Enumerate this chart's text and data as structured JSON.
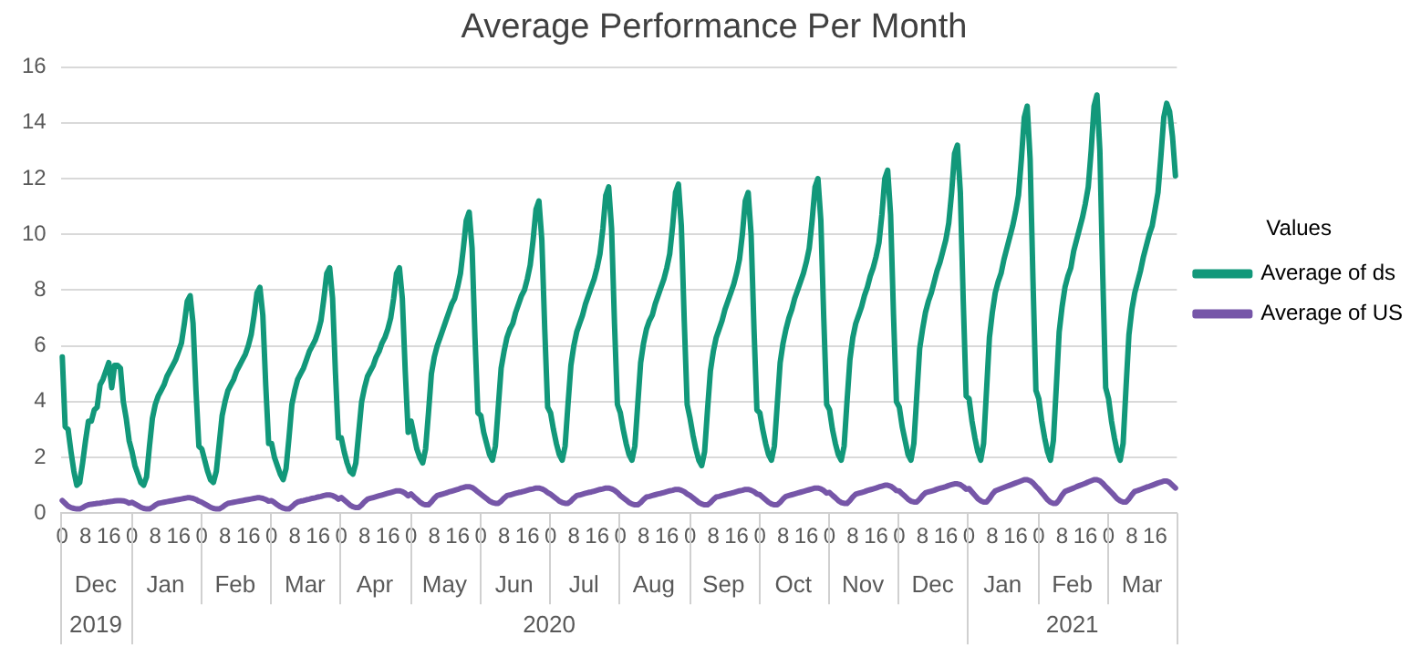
{
  "chart_data": {
    "type": "line",
    "title": "Average Performance Per Month",
    "legend_title": "Values",
    "legend": "right",
    "grid": "y",
    "marker": "none",
    "line_style": "solid",
    "ylim": [
      0,
      16
    ],
    "yticks": [
      0,
      2,
      4,
      6,
      8,
      10,
      12,
      14,
      16
    ],
    "annotations": [
      "Dec",
      "Jan",
      "Feb",
      "Mar",
      "Apr",
      "May",
      "Jun",
      "Jul",
      "Aug",
      "Sep",
      "Oct",
      "Nov",
      "Dec",
      "Jan",
      "Feb",
      "Mar",
      "2019",
      "2020",
      "2021"
    ],
    "categories": [
      "0",
      null,
      null,
      null,
      null,
      null,
      null,
      null,
      "8",
      null,
      null,
      null,
      null,
      null,
      null,
      null,
      "16",
      null,
      null,
      null,
      null,
      null,
      null,
      null,
      "0",
      null,
      null,
      null,
      null,
      null,
      null,
      null,
      "8",
      null,
      null,
      null,
      null,
      null,
      null,
      null,
      "16",
      null,
      null,
      null,
      null,
      null,
      null,
      null,
      "0",
      null,
      null,
      null,
      null,
      null,
      null,
      null,
      "8",
      null,
      null,
      null,
      null,
      null,
      null,
      null,
      "16",
      null,
      null,
      null,
      null,
      null,
      null,
      null,
      "0",
      null,
      null,
      null,
      null,
      null,
      null,
      null,
      "8",
      null,
      null,
      null,
      null,
      null,
      null,
      null,
      "16",
      null,
      null,
      null,
      null,
      null,
      null,
      null,
      "0",
      null,
      null,
      null,
      null,
      null,
      null,
      null,
      "8",
      null,
      null,
      null,
      null,
      null,
      null,
      null,
      "16",
      null,
      null,
      null,
      null,
      null,
      null,
      null,
      "0",
      null,
      null,
      null,
      null,
      null,
      null,
      null,
      "8",
      null,
      null,
      null,
      null,
      null,
      null,
      null,
      "16",
      null,
      null,
      null,
      null,
      null,
      null,
      null,
      "0",
      null,
      null,
      null,
      null,
      null,
      null,
      null,
      "8",
      null,
      null,
      null,
      null,
      null,
      null,
      null,
      "16",
      null,
      null,
      null,
      null,
      null,
      null,
      null,
      "0",
      null,
      null,
      null,
      null,
      null,
      null,
      null,
      "8",
      null,
      null,
      null,
      null,
      null,
      null,
      null,
      "16",
      null,
      null,
      null,
      null,
      null,
      null,
      null,
      "0",
      null,
      null,
      null,
      null,
      null,
      null,
      null,
      "8",
      null,
      null,
      null,
      null,
      null,
      null,
      null,
      "16",
      null,
      null,
      null,
      null,
      null,
      null,
      null,
      "0",
      null,
      null,
      null,
      null,
      null,
      null,
      null,
      "8",
      null,
      null,
      null,
      null,
      null,
      null,
      null,
      "16",
      null,
      null,
      null,
      null,
      null,
      null,
      null,
      "0",
      null,
      null,
      null,
      null,
      null,
      null,
      null,
      "8",
      null,
      null,
      null,
      null,
      null,
      null,
      null,
      "16",
      null,
      null,
      null,
      null,
      null,
      null,
      null,
      "0",
      null,
      null,
      null,
      null,
      null,
      null,
      null,
      "8",
      null,
      null,
      null,
      null,
      null,
      null,
      null,
      "16",
      null,
      null,
      null,
      null,
      null,
      null,
      null,
      "0",
      null,
      null,
      null,
      null,
      null,
      null,
      null,
      "8",
      null,
      null,
      null,
      null,
      null,
      null,
      null,
      "16",
      null,
      null,
      null,
      null,
      null,
      null,
      null,
      "0",
      null,
      null,
      null,
      null,
      null,
      null,
      null,
      "8",
      null,
      null,
      null,
      null,
      null,
      null,
      null,
      "16",
      null,
      null,
      null,
      null,
      null,
      null,
      null,
      "0",
      null,
      null,
      null,
      null,
      null,
      null,
      null,
      "8",
      null,
      null,
      null,
      null,
      null,
      null,
      null,
      "16",
      null,
      null,
      null,
      null,
      null,
      null,
      null,
      "0",
      null,
      null,
      null,
      null,
      null,
      null,
      null,
      "8",
      null,
      null,
      null,
      null,
      null,
      null,
      null,
      "16",
      null,
      null,
      null,
      null,
      null,
      null,
      null
    ],
    "series": [
      {
        "name": "Average of ds",
        "color": "#12987a",
        "values": [
          5.6,
          3.1,
          3.0,
          2.2,
          1.5,
          1.0,
          1.1,
          1.8,
          2.6,
          3.3,
          3.3,
          3.7,
          3.8,
          4.6,
          4.8,
          5.1,
          5.4,
          4.5,
          5.3,
          5.3,
          5.2,
          4.0,
          3.4,
          2.6,
          2.2,
          1.7,
          1.4,
          1.1,
          1.0,
          1.3,
          2.4,
          3.4,
          3.9,
          4.2,
          4.4,
          4.6,
          4.9,
          5.1,
          5.3,
          5.5,
          5.8,
          6.1,
          6.8,
          7.6,
          7.8,
          6.8,
          4.4,
          2.4,
          2.3,
          1.9,
          1.5,
          1.2,
          1.1,
          1.5,
          2.5,
          3.5,
          4.0,
          4.4,
          4.6,
          4.8,
          5.1,
          5.3,
          5.5,
          5.7,
          6.0,
          6.4,
          7.1,
          7.9,
          8.1,
          7.1,
          4.6,
          2.5,
          2.5,
          2.0,
          1.7,
          1.4,
          1.2,
          1.6,
          2.7,
          3.9,
          4.4,
          4.8,
          5.0,
          5.2,
          5.5,
          5.8,
          6.0,
          6.2,
          6.5,
          6.9,
          7.7,
          8.6,
          8.8,
          7.7,
          5.0,
          2.7,
          2.7,
          2.2,
          1.8,
          1.5,
          1.4,
          1.8,
          2.9,
          4.0,
          4.5,
          4.9,
          5.1,
          5.3,
          5.6,
          5.8,
          6.1,
          6.3,
          6.6,
          7.0,
          7.7,
          8.6,
          8.8,
          7.7,
          5.1,
          2.9,
          3.3,
          2.8,
          2.3,
          2.0,
          1.8,
          2.3,
          3.6,
          5.0,
          5.6,
          6.0,
          6.3,
          6.6,
          6.9,
          7.2,
          7.5,
          7.7,
          8.1,
          8.6,
          9.5,
          10.5,
          10.8,
          9.5,
          6.3,
          3.6,
          3.5,
          2.9,
          2.5,
          2.1,
          1.9,
          2.4,
          3.8,
          5.2,
          5.8,
          6.3,
          6.6,
          6.8,
          7.2,
          7.5,
          7.8,
          8.0,
          8.4,
          8.9,
          9.8,
          10.9,
          11.2,
          9.8,
          6.6,
          3.8,
          3.6,
          3.0,
          2.5,
          2.1,
          1.9,
          2.4,
          3.9,
          5.3,
          6.0,
          6.5,
          6.8,
          7.1,
          7.5,
          7.8,
          8.1,
          8.4,
          8.8,
          9.3,
          10.2,
          11.4,
          11.7,
          10.2,
          6.8,
          3.9,
          3.6,
          3.0,
          2.5,
          2.1,
          1.9,
          2.4,
          3.9,
          5.4,
          6.1,
          6.6,
          6.9,
          7.1,
          7.5,
          7.8,
          8.1,
          8.4,
          8.8,
          9.3,
          10.3,
          11.5,
          11.8,
          10.3,
          6.9,
          3.9,
          3.4,
          2.8,
          2.3,
          1.9,
          1.7,
          2.2,
          3.7,
          5.1,
          5.8,
          6.3,
          6.6,
          6.9,
          7.3,
          7.6,
          7.9,
          8.2,
          8.6,
          9.1,
          10.0,
          11.2,
          11.5,
          10.0,
          6.6,
          3.7,
          3.6,
          3.0,
          2.5,
          2.1,
          1.9,
          2.4,
          3.9,
          5.4,
          6.1,
          6.6,
          7.0,
          7.3,
          7.7,
          8.0,
          8.3,
          8.6,
          9.0,
          9.5,
          10.5,
          11.7,
          12.0,
          10.5,
          7.0,
          3.9,
          3.7,
          3.0,
          2.5,
          2.1,
          1.9,
          2.4,
          4.0,
          5.5,
          6.3,
          6.8,
          7.1,
          7.4,
          7.8,
          8.1,
          8.5,
          8.8,
          9.2,
          9.7,
          10.7,
          12.0,
          12.3,
          10.7,
          7.1,
          4.0,
          3.8,
          3.1,
          2.6,
          2.1,
          1.9,
          2.5,
          4.2,
          5.9,
          6.6,
          7.2,
          7.6,
          7.9,
          8.3,
          8.7,
          9.0,
          9.4,
          9.8,
          10.4,
          11.5,
          12.9,
          13.2,
          11.5,
          7.6,
          4.2,
          4.1,
          3.3,
          2.7,
          2.2,
          1.9,
          2.5,
          4.4,
          6.3,
          7.2,
          7.9,
          8.3,
          8.6,
          9.1,
          9.5,
          9.9,
          10.3,
          10.8,
          11.4,
          12.7,
          14.2,
          14.6,
          12.7,
          8.3,
          4.4,
          4.1,
          3.3,
          2.7,
          2.2,
          1.9,
          2.6,
          4.5,
          6.5,
          7.4,
          8.1,
          8.5,
          8.8,
          9.4,
          9.8,
          10.2,
          10.6,
          11.1,
          11.7,
          13.0,
          14.6,
          15.0,
          13.0,
          8.5,
          4.5,
          4.1,
          3.3,
          2.7,
          2.2,
          1.9,
          2.5,
          4.5,
          6.4,
          7.3,
          7.9,
          8.3,
          8.7,
          9.2,
          9.6,
          10.0,
          10.3,
          10.9,
          11.5,
          12.8,
          14.2,
          14.7,
          14.4,
          13.5,
          12.1
        ]
      },
      {
        "name": "Average of US",
        "color": "#7656a8",
        "values": [
          0.45,
          0.35,
          0.25,
          0.2,
          0.17,
          0.15,
          0.15,
          0.2,
          0.26,
          0.3,
          0.32,
          0.33,
          0.35,
          0.36,
          0.38,
          0.39,
          0.41,
          0.42,
          0.44,
          0.45,
          0.45,
          0.44,
          0.41,
          0.36,
          0.39,
          0.33,
          0.27,
          0.21,
          0.17,
          0.15,
          0.15,
          0.21,
          0.29,
          0.35,
          0.37,
          0.39,
          0.41,
          0.43,
          0.45,
          0.47,
          0.49,
          0.51,
          0.53,
          0.55,
          0.55,
          0.53,
          0.49,
          0.43,
          0.39,
          0.33,
          0.27,
          0.21,
          0.17,
          0.15,
          0.15,
          0.21,
          0.29,
          0.35,
          0.37,
          0.39,
          0.41,
          0.43,
          0.45,
          0.47,
          0.49,
          0.51,
          0.53,
          0.55,
          0.55,
          0.53,
          0.49,
          0.43,
          0.45,
          0.38,
          0.3,
          0.23,
          0.18,
          0.15,
          0.15,
          0.23,
          0.33,
          0.4,
          0.43,
          0.45,
          0.48,
          0.5,
          0.53,
          0.55,
          0.58,
          0.6,
          0.63,
          0.65,
          0.65,
          0.63,
          0.58,
          0.5,
          0.56,
          0.47,
          0.38,
          0.29,
          0.23,
          0.2,
          0.2,
          0.29,
          0.41,
          0.5,
          0.53,
          0.56,
          0.59,
          0.62,
          0.65,
          0.68,
          0.71,
          0.74,
          0.77,
          0.8,
          0.8,
          0.77,
          0.71,
          0.62,
          0.69,
          0.59,
          0.5,
          0.4,
          0.33,
          0.3,
          0.3,
          0.4,
          0.53,
          0.63,
          0.66,
          0.69,
          0.72,
          0.76,
          0.79,
          0.82,
          0.85,
          0.89,
          0.92,
          0.95,
          0.95,
          0.92,
          0.85,
          0.76,
          0.68,
          0.6,
          0.52,
          0.43,
          0.38,
          0.35,
          0.35,
          0.43,
          0.54,
          0.63,
          0.65,
          0.68,
          0.71,
          0.74,
          0.76,
          0.79,
          0.82,
          0.85,
          0.87,
          0.9,
          0.9,
          0.87,
          0.82,
          0.74,
          0.68,
          0.6,
          0.52,
          0.43,
          0.38,
          0.35,
          0.35,
          0.43,
          0.54,
          0.63,
          0.65,
          0.68,
          0.71,
          0.74,
          0.76,
          0.79,
          0.82,
          0.85,
          0.87,
          0.9,
          0.9,
          0.87,
          0.82,
          0.74,
          0.63,
          0.55,
          0.47,
          0.38,
          0.33,
          0.3,
          0.3,
          0.38,
          0.49,
          0.58,
          0.6,
          0.63,
          0.66,
          0.69,
          0.71,
          0.74,
          0.77,
          0.8,
          0.82,
          0.85,
          0.85,
          0.82,
          0.77,
          0.69,
          0.63,
          0.55,
          0.47,
          0.38,
          0.33,
          0.3,
          0.3,
          0.38,
          0.49,
          0.58,
          0.6,
          0.63,
          0.66,
          0.69,
          0.71,
          0.74,
          0.77,
          0.8,
          0.82,
          0.85,
          0.85,
          0.82,
          0.77,
          0.69,
          0.66,
          0.57,
          0.48,
          0.39,
          0.33,
          0.3,
          0.3,
          0.39,
          0.51,
          0.6,
          0.63,
          0.66,
          0.69,
          0.72,
          0.75,
          0.78,
          0.81,
          0.84,
          0.87,
          0.9,
          0.9,
          0.87,
          0.81,
          0.72,
          0.74,
          0.64,
          0.55,
          0.45,
          0.38,
          0.35,
          0.35,
          0.45,
          0.58,
          0.68,
          0.71,
          0.74,
          0.77,
          0.81,
          0.84,
          0.87,
          0.9,
          0.94,
          0.97,
          1.0,
          1.0,
          0.97,
          0.9,
          0.81,
          0.79,
          0.69,
          0.6,
          0.5,
          0.43,
          0.4,
          0.4,
          0.5,
          0.63,
          0.73,
          0.76,
          0.79,
          0.82,
          0.86,
          0.89,
          0.92,
          0.95,
          0.99,
          1.02,
          1.05,
          1.05,
          1.02,
          0.95,
          0.86,
          0.88,
          0.76,
          0.64,
          0.52,
          0.44,
          0.4,
          0.4,
          0.52,
          0.68,
          0.8,
          0.84,
          0.88,
          0.92,
          0.96,
          1.0,
          1.04,
          1.08,
          1.12,
          1.16,
          1.2,
          1.2,
          1.16,
          1.08,
          0.96,
          0.86,
          0.73,
          0.61,
          0.48,
          0.39,
          0.35,
          0.35,
          0.48,
          0.65,
          0.78,
          0.82,
          0.86,
          0.9,
          0.95,
          0.99,
          1.03,
          1.07,
          1.12,
          1.16,
          1.2,
          1.2,
          1.16,
          1.07,
          0.95,
          0.85,
          0.74,
          0.63,
          0.51,
          0.44,
          0.4,
          0.4,
          0.51,
          0.66,
          0.78,
          0.81,
          0.85,
          0.89,
          0.93,
          0.96,
          1.0,
          1.04,
          1.08,
          1.11,
          1.15,
          1.15,
          1.1,
          1.0,
          0.9
        ]
      }
    ]
  }
}
